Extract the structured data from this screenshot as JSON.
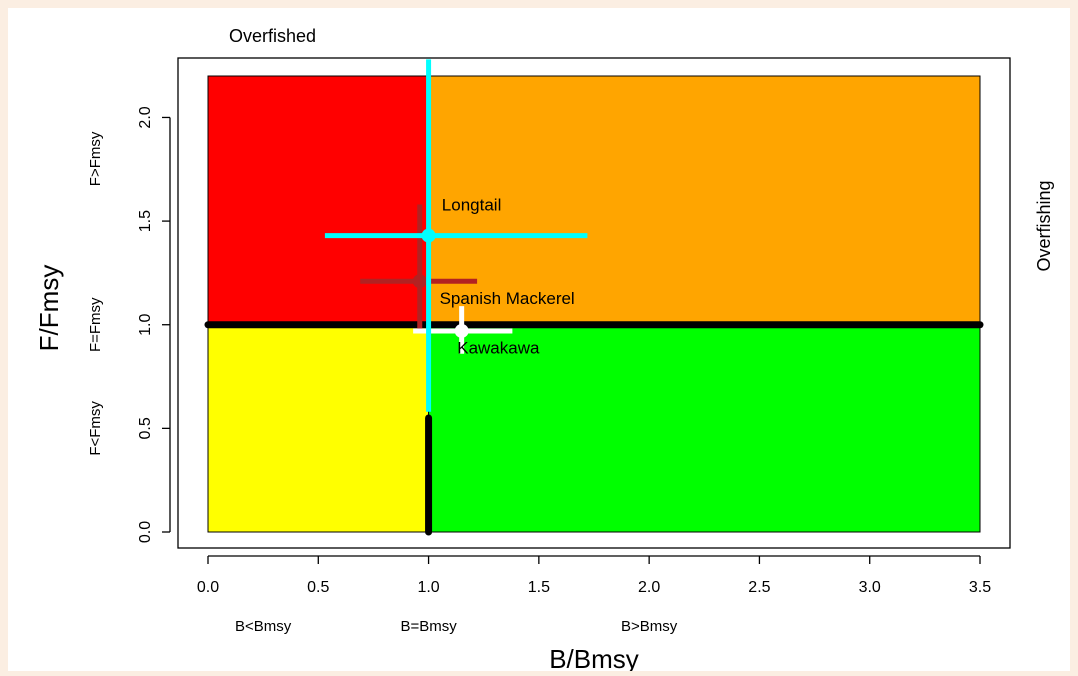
{
  "chart_data": {
    "type": "scatter",
    "subtype": "kobe-plot",
    "xlabel": "B/Bmsy",
    "ylabel": "F/Fmsy",
    "xlim": [
      0,
      3.5
    ],
    "ylim": [
      0,
      2.2
    ],
    "x_ticks": [
      "0.0",
      "0.5",
      "1.0",
      "1.5",
      "2.0",
      "2.5",
      "3.0",
      "3.5"
    ],
    "y_ticks": [
      "0.0",
      "0.5",
      "1.0",
      "1.5",
      "2.0"
    ],
    "grid": false,
    "x_zone_labels": [
      "B<Bmsy",
      "B=Bmsy",
      "B>Bmsy"
    ],
    "y_zone_labels": [
      "F<Fmsy",
      "F=Fmsy",
      "F>Fmsy"
    ],
    "top_label": "Overfished",
    "right_label": "Overfishing",
    "quadrants": [
      {
        "name": "red",
        "x": [
          0,
          1
        ],
        "y": [
          1,
          2.2
        ],
        "color": "#ff0000"
      },
      {
        "name": "orange",
        "x": [
          1,
          3.5
        ],
        "y": [
          1,
          2.2
        ],
        "color": "#ffa500"
      },
      {
        "name": "yellow",
        "x": [
          0,
          1
        ],
        "y": [
          0,
          1
        ],
        "color": "#ffff00"
      },
      {
        "name": "green",
        "x": [
          1,
          3.5
        ],
        "y": [
          0,
          1
        ],
        "color": "#00ff00"
      }
    ],
    "reference_lines": [
      {
        "orientation": "horizontal",
        "value": 1.0,
        "from": 0,
        "to": 3.5,
        "color": "#000000"
      },
      {
        "orientation": "vertical",
        "value": 1.0,
        "from": 0,
        "to": 0.55,
        "color": "#000000"
      }
    ],
    "series": [
      {
        "name": "Longtail",
        "x": 1.0,
        "y": 1.43,
        "x_range": [
          0.53,
          1.72
        ],
        "y_range": [
          0.58,
          2.28
        ],
        "color": "#00ffff",
        "label_dx": 0.06,
        "label_dy": 0.12
      },
      {
        "name": "Spanish Mackerel",
        "x": 0.96,
        "y": 1.21,
        "x_range": [
          0.69,
          1.22
        ],
        "y_range": [
          0.97,
          1.58
        ],
        "color": "#b22222",
        "label_dx": 0.09,
        "label_dy": -0.11
      },
      {
        "name": "Kawakawa",
        "x": 1.15,
        "y": 0.97,
        "x_range": [
          0.93,
          1.38
        ],
        "y_range": [
          0.86,
          1.09
        ],
        "color": "#ffffff",
        "label_dx": -0.02,
        "label_dy": -0.11
      }
    ]
  }
}
